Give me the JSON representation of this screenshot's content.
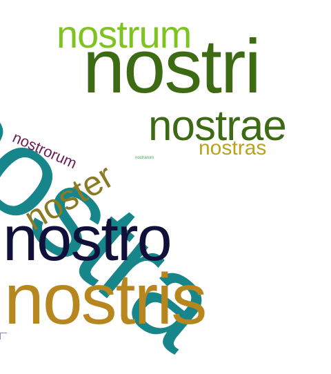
{
  "words": [
    {
      "text": "nostra",
      "color": "#17868a"
    },
    {
      "text": "nostri",
      "color": "#3d6b14"
    },
    {
      "text": "nostrum",
      "color": "#7fc320"
    },
    {
      "text": "nostrae",
      "color": "#3d6b14"
    },
    {
      "text": "nostras",
      "color": "#b8a41a"
    },
    {
      "text": "nostrorum",
      "color": "#6e1a55"
    },
    {
      "text": "noster",
      "color": "#8a7a24"
    },
    {
      "text": "nostro",
      "color": "#10103a"
    },
    {
      "text": "nostris",
      "color": "#b8861e"
    },
    {
      "text": "nostrarum",
      "color": "#3aa84a"
    }
  ]
}
